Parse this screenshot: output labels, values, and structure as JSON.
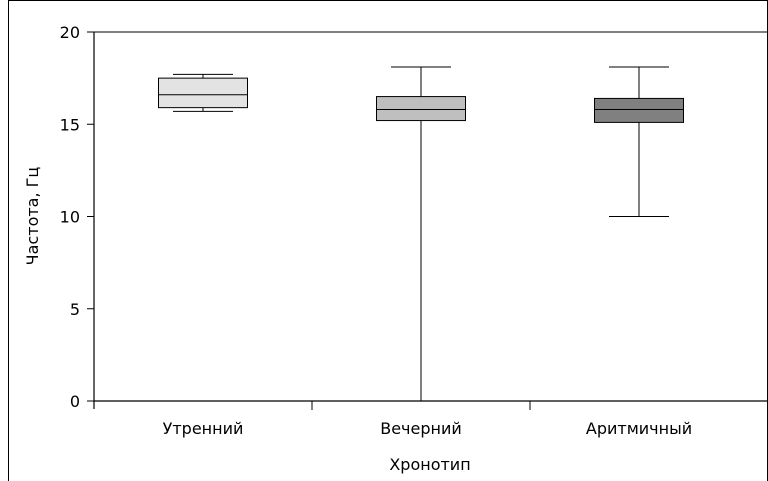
{
  "chart_data": {
    "type": "boxplot",
    "title": "",
    "xlabel": "Хронотип",
    "ylabel": "Частота, Гц",
    "ylim": [
      0,
      20
    ],
    "yticks": [
      0,
      5,
      10,
      15,
      20
    ],
    "grid": false,
    "legend": "none",
    "categories": [
      "Утренний",
      "Вечерний",
      "Аритмичный"
    ],
    "boxes": [
      {
        "category": "Утренний",
        "min": 15.7,
        "q1": 15.9,
        "median": 16.6,
        "q3": 17.5,
        "max": 17.7,
        "color": "#e3e3e3"
      },
      {
        "category": "Вечерний",
        "min": 0,
        "q1": 15.2,
        "median": 15.8,
        "q3": 16.5,
        "max": 18.1,
        "color": "#bfbfbf"
      },
      {
        "category": "Аритмичный",
        "min": 10.0,
        "q1": 15.1,
        "median": 15.8,
        "q3": 16.4,
        "max": 18.1,
        "color": "#808080"
      }
    ]
  }
}
